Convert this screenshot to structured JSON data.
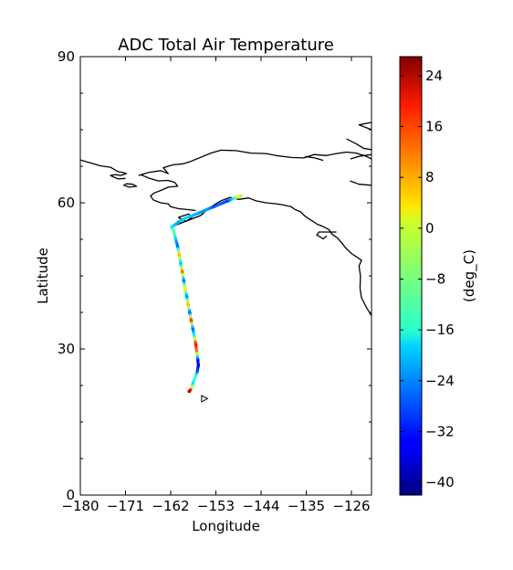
{
  "chart_data": {
    "type": "map-trajectory",
    "title": "ADC Total Air Temperature",
    "xlabel": "Longitude",
    "ylabel": "Latitude",
    "xlim": [
      -180,
      -122
    ],
    "ylim": [
      0,
      90
    ],
    "xticks": [
      {
        "value": -180,
        "label": "−180"
      },
      {
        "value": -171,
        "label": "−171"
      },
      {
        "value": -162,
        "label": "−162"
      },
      {
        "value": -153,
        "label": "−153"
      },
      {
        "value": -144,
        "label": "−144"
      },
      {
        "value": -135,
        "label": "−135"
      },
      {
        "value": -126,
        "label": "−126"
      }
    ],
    "yticks": [
      {
        "value": 0,
        "label": "0"
      },
      {
        "value": 30,
        "label": "30"
      },
      {
        "value": 60,
        "label": "60"
      },
      {
        "value": 90,
        "label": "90"
      }
    ],
    "grid": false,
    "colorbar": {
      "label": "(deg_C)",
      "range": [
        -42,
        27
      ],
      "colormap": "jet",
      "ticks": [
        {
          "value": 24,
          "label": "24"
        },
        {
          "value": 16,
          "label": "16"
        },
        {
          "value": 8,
          "label": "8"
        },
        {
          "value": 0,
          "label": "0"
        },
        {
          "value": -8,
          "label": "−8"
        },
        {
          "value": -16,
          "label": "−16"
        },
        {
          "value": -24,
          "label": "−24"
        },
        {
          "value": -32,
          "label": "−32"
        },
        {
          "value": -40,
          "label": "−40"
        }
      ]
    },
    "coastline_color": "#000000",
    "coastlines": [
      [
        [
          -180,
          68.8
        ],
        [
          -176,
          67.6
        ],
        [
          -174,
          67.3
        ],
        [
          -172.5,
          66.4
        ],
        [
          -171.5,
          66.2
        ],
        [
          -170.8,
          66.0
        ],
        [
          -172,
          65.6
        ],
        [
          -173,
          65.8
        ],
        [
          -174,
          65.6
        ],
        [
          -172.5,
          64.9
        ],
        [
          -171,
          65.0
        ]
      ],
      [
        [
          -168.4,
          65.6
        ],
        [
          -166.5,
          66.2
        ],
        [
          -164,
          66.6
        ],
        [
          -162.5,
          66.0
        ],
        [
          -163.5,
          67.2
        ],
        [
          -161.5,
          67.8
        ],
        [
          -159.5,
          68.0
        ],
        [
          -158,
          68.5
        ],
        [
          -154,
          70.2
        ],
        [
          -152,
          70.8
        ],
        [
          -149,
          70.7
        ],
        [
          -146,
          70.2
        ],
        [
          -143,
          70.1
        ],
        [
          -141,
          69.7
        ],
        [
          -138,
          69.3
        ],
        [
          -135.5,
          69.2
        ],
        [
          -133.5,
          69.9
        ],
        [
          -131,
          69.7
        ],
        [
          -129,
          70.1
        ],
        [
          -127,
          70.4
        ],
        [
          -125,
          70.2
        ],
        [
          -123,
          69.5
        ],
        [
          -122,
          69.0
        ]
      ],
      [
        [
          -168,
          65.8
        ],
        [
          -166.2,
          65.0
        ],
        [
          -164.5,
          64.5
        ],
        [
          -162.5,
          64.6
        ],
        [
          -161.2,
          64.2
        ],
        [
          -160.6,
          63.4
        ],
        [
          -162.5,
          63.2
        ],
        [
          -163.8,
          62.6
        ],
        [
          -165.3,
          62.0
        ],
        [
          -166.0,
          61.4
        ],
        [
          -165.5,
          60.6
        ],
        [
          -164.0,
          60.0
        ],
        [
          -162.5,
          59.8
        ],
        [
          -162.0,
          59.2
        ],
        [
          -160.5,
          58.8
        ],
        [
          -158.5,
          58.6
        ],
        [
          -157.0,
          58.4
        ]
      ],
      [
        [
          -162,
          55.0
        ],
        [
          -160.0,
          55.8
        ],
        [
          -158.0,
          56.6
        ],
        [
          -156.0,
          57.4
        ],
        [
          -154.5,
          58.8
        ],
        [
          -153.0,
          59.8
        ],
        [
          -152.0,
          60.4
        ],
        [
          -150.2,
          61.1
        ],
        [
          -148.5,
          60.7
        ],
        [
          -146.5,
          61.0
        ],
        [
          -145.0,
          60.4
        ],
        [
          -143.0,
          60.0
        ],
        [
          -141.0,
          59.8
        ],
        [
          -139.8,
          59.6
        ],
        [
          -138.0,
          59.2
        ],
        [
          -137.2,
          58.6
        ],
        [
          -136.2,
          58.2
        ],
        [
          -135.2,
          57.2
        ],
        [
          -134.0,
          56.4
        ],
        [
          -132.8,
          55.6
        ],
        [
          -131.8,
          55.2
        ],
        [
          -130.5,
          54.5
        ],
        [
          -129.8,
          53.5
        ],
        [
          -128.8,
          52.8
        ],
        [
          -127.8,
          51.6
        ],
        [
          -127.2,
          50.8
        ],
        [
          -126.0,
          49.6
        ],
        [
          -125.0,
          48.9
        ],
        [
          -124.0,
          48.2
        ],
        [
          -124.5,
          47.0
        ],
        [
          -124.2,
          45.0
        ],
        [
          -124.3,
          42.5
        ],
        [
          -124.0,
          40.5
        ],
        [
          -123.0,
          38.5
        ],
        [
          -122.0,
          36.8
        ]
      ],
      [
        [
          -129.0,
          54.0
        ],
        [
          -132.5,
          54.0
        ],
        [
          -132.9,
          53.4
        ],
        [
          -131.6,
          52.6
        ],
        [
          -130.9,
          53.2
        ]
      ],
      [
        [
          -126.2,
          69.0
        ],
        [
          -124.2,
          69.6
        ],
        [
          -122.0,
          69.9
        ]
      ],
      [
        [
          -135.2,
          69.5
        ],
        [
          -133.3,
          69.2
        ],
        [
          -131.6,
          68.7
        ]
      ],
      [
        [
          -127.0,
          73.1
        ],
        [
          -125.2,
          72.2
        ],
        [
          -123.6,
          71.2
        ],
        [
          -122.0,
          70.9
        ]
      ],
      [
        [
          -122.0,
          76.5
        ],
        [
          -124.5,
          76.0
        ],
        [
          -122.0,
          75.0
        ]
      ],
      [
        [
          -126.3,
          64.5
        ],
        [
          -124.5,
          63.8
        ],
        [
          -122.0,
          63.6
        ]
      ],
      [
        [
          -171.4,
          63.6
        ],
        [
          -170.2,
          63.2
        ],
        [
          -168.8,
          63.4
        ],
        [
          -169.6,
          63.8
        ],
        [
          -170.8,
          63.9
        ],
        [
          -171.4,
          63.6
        ]
      ],
      [
        [
          -160.5,
          57.0
        ],
        [
          -158.4,
          57.7
        ],
        [
          -157.8,
          57.0
        ],
        [
          -158.9,
          56.2
        ],
        [
          -160.5,
          57.0
        ]
      ]
    ],
    "trajectory": [
      {
        "lon": -161.8,
        "lat": 55.0,
        "temp": -18
      },
      {
        "lon": -160.5,
        "lat": 56.0,
        "temp": -22
      },
      {
        "lon": -159.2,
        "lat": 56.8,
        "temp": -18
      },
      {
        "lon": -157.6,
        "lat": 57.4,
        "temp": -20
      },
      {
        "lon": -156.4,
        "lat": 57.9,
        "temp": -22
      },
      {
        "lon": -155.4,
        "lat": 58.3,
        "temp": -24
      },
      {
        "lon": -154.6,
        "lat": 58.7,
        "temp": -22
      },
      {
        "lon": -153.4,
        "lat": 59.2,
        "temp": -28
      },
      {
        "lon": -152.0,
        "lat": 59.8,
        "temp": -26
      },
      {
        "lon": -150.6,
        "lat": 60.4,
        "temp": -30
      },
      {
        "lon": -149.2,
        "lat": 61.0,
        "temp": -12
      },
      {
        "lon": -148.5,
        "lat": 61.3,
        "temp": 2
      },
      {
        "lon": -148.0,
        "lat": 61.4,
        "temp": -6
      },
      {
        "lon": -161.4,
        "lat": 54.2,
        "temp": -8
      },
      {
        "lon": -161.0,
        "lat": 52.5,
        "temp": -20
      },
      {
        "lon": -160.6,
        "lat": 51.0,
        "temp": -28
      },
      {
        "lon": -160.3,
        "lat": 49.3,
        "temp": 10
      },
      {
        "lon": -160.0,
        "lat": 47.5,
        "temp": -24
      },
      {
        "lon": -159.7,
        "lat": 45.8,
        "temp": 16
      },
      {
        "lon": -159.4,
        "lat": 44.0,
        "temp": -30
      },
      {
        "lon": -159.1,
        "lat": 42.3,
        "temp": 6
      },
      {
        "lon": -158.8,
        "lat": 40.7,
        "temp": -28
      },
      {
        "lon": -158.5,
        "lat": 39.0,
        "temp": 12
      },
      {
        "lon": -158.2,
        "lat": 37.4,
        "temp": -32
      },
      {
        "lon": -157.9,
        "lat": 35.8,
        "temp": 22
      },
      {
        "lon": -157.6,
        "lat": 34.2,
        "temp": -30
      },
      {
        "lon": -157.3,
        "lat": 32.6,
        "temp": -14
      },
      {
        "lon": -157.0,
        "lat": 31.0,
        "temp": 20
      },
      {
        "lon": -156.8,
        "lat": 29.4,
        "temp": 10
      },
      {
        "lon": -156.6,
        "lat": 27.8,
        "temp": -32
      },
      {
        "lon": -156.5,
        "lat": 26.6,
        "temp": -36
      },
      {
        "lon": -156.7,
        "lat": 25.4,
        "temp": -28
      },
      {
        "lon": -157.2,
        "lat": 24.0,
        "temp": -8
      },
      {
        "lon": -157.6,
        "lat": 22.8,
        "temp": -20
      },
      {
        "lon": -157.9,
        "lat": 21.8,
        "temp": 4
      },
      {
        "lon": -158.3,
        "lat": 21.3,
        "temp": 26
      }
    ],
    "markers": [
      {
        "lon": -155.3,
        "lat": 19.8,
        "shape": "triangle-right"
      }
    ]
  }
}
